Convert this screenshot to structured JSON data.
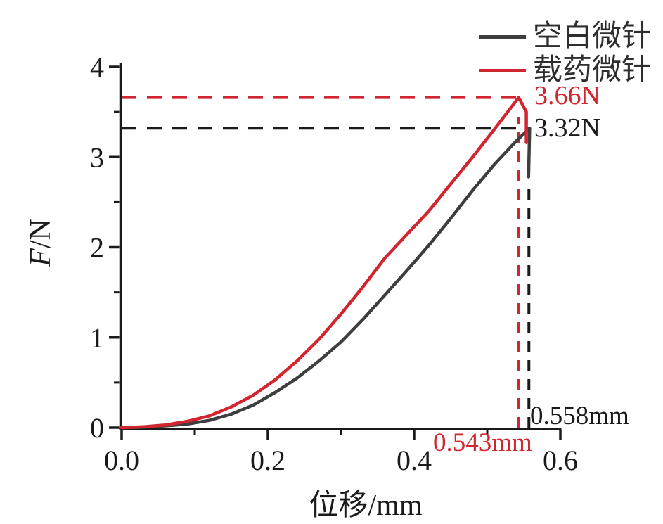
{
  "figure": {
    "background": "#ffffff",
    "text_color": "#1a1a1a",
    "legend": {
      "position": "top-right",
      "items": [
        {
          "label": "空白微针",
          "color": "#3e3e40"
        },
        {
          "label": "载药微针",
          "color": "#d1262f"
        }
      ]
    },
    "y_axis_label": {
      "symbol": "F",
      "unit": "/N"
    },
    "x_axis_label": "位移/mm",
    "annotations": {
      "red_peak_force": {
        "text": "3.66N",
        "color": "#d1262f"
      },
      "black_peak_force": {
        "text": "3.32N",
        "color": "#1a1a1a"
      },
      "black_peak_disp": {
        "text": "0.558mm",
        "color": "#1a1a1a"
      },
      "red_peak_disp": {
        "text": "0.543mm",
        "color": "#d1262f"
      }
    }
  },
  "chart_data": {
    "type": "line",
    "title": "",
    "xlabel": "位移/mm",
    "ylabel": "F/N",
    "xlim": [
      0,
      0.6
    ],
    "ylim": [
      0,
      4
    ],
    "grid": false,
    "legend_position": "top-right",
    "x_major_ticks": [
      0.0,
      0.2,
      0.4,
      0.6
    ],
    "x_tick_labels": [
      "0.0",
      "0.2",
      "0.4",
      "0.6"
    ],
    "x_minor_ticks": [
      0.1,
      0.3,
      0.5
    ],
    "y_major_ticks": [
      0,
      1,
      2,
      3,
      4
    ],
    "y_tick_labels": [
      "0",
      "1",
      "2",
      "3",
      "4"
    ],
    "y_minor_ticks": [
      0.5,
      1.5,
      2.5,
      3.5
    ],
    "series": [
      {
        "name": "空白微针",
        "color": "#3e3e40",
        "peak_force_N": 3.32,
        "peak_displacement_mm": 0.558,
        "points": [
          [
            0,
            0
          ],
          [
            0.03,
            0.005
          ],
          [
            0.06,
            0.02
          ],
          [
            0.09,
            0.04
          ],
          [
            0.12,
            0.08
          ],
          [
            0.15,
            0.15
          ],
          [
            0.18,
            0.25
          ],
          [
            0.21,
            0.39
          ],
          [
            0.24,
            0.55
          ],
          [
            0.27,
            0.74
          ],
          [
            0.3,
            0.95
          ],
          [
            0.33,
            1.2
          ],
          [
            0.36,
            1.47
          ],
          [
            0.39,
            1.74
          ],
          [
            0.42,
            2.02
          ],
          [
            0.45,
            2.32
          ],
          [
            0.48,
            2.63
          ],
          [
            0.51,
            2.92
          ],
          [
            0.54,
            3.18
          ],
          [
            0.558,
            3.32
          ],
          [
            0.5565,
            2.78
          ]
        ]
      },
      {
        "name": "载药微针",
        "color": "#d1262f",
        "peak_force_N": 3.66,
        "peak_displacement_mm": 0.543,
        "points": [
          [
            0,
            0
          ],
          [
            0.03,
            0.01
          ],
          [
            0.06,
            0.03
          ],
          [
            0.09,
            0.07
          ],
          [
            0.12,
            0.13
          ],
          [
            0.15,
            0.23
          ],
          [
            0.18,
            0.36
          ],
          [
            0.21,
            0.53
          ],
          [
            0.24,
            0.74
          ],
          [
            0.27,
            0.98
          ],
          [
            0.3,
            1.26
          ],
          [
            0.33,
            1.56
          ],
          [
            0.36,
            1.88
          ],
          [
            0.39,
            2.14
          ],
          [
            0.42,
            2.4
          ],
          [
            0.45,
            2.7
          ],
          [
            0.48,
            3.0
          ],
          [
            0.51,
            3.31
          ],
          [
            0.543,
            3.66
          ],
          [
            0.5535,
            3.5
          ],
          [
            0.5535,
            3.16
          ]
        ]
      }
    ],
    "guides": [
      {
        "type": "h",
        "color": "#d1262f",
        "y": 3.66,
        "x0": 0,
        "x1": 0.543,
        "dash": "21 15"
      },
      {
        "type": "h",
        "color": "#1a1a1a",
        "y": 3.32,
        "x0": 0,
        "x1": 0.558,
        "dash": "21 15"
      },
      {
        "type": "v",
        "color": "#d1262f",
        "x": 0.543,
        "y0": 0,
        "y1": 3.44,
        "dash": "15 12"
      },
      {
        "type": "v",
        "color": "#1a1a1a",
        "x": 0.557,
        "y0": 0,
        "y1": 2.7,
        "dash": "15 12"
      }
    ]
  }
}
